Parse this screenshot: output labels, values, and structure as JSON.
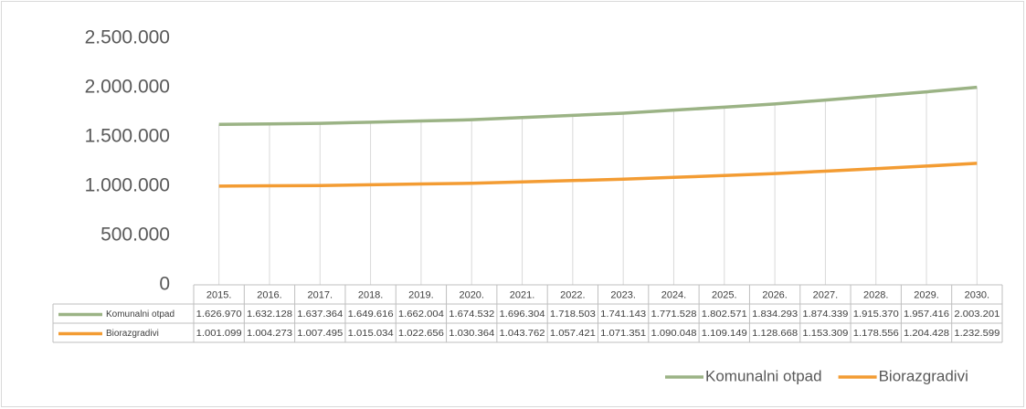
{
  "chart_data": {
    "type": "line",
    "categories": [
      "2015.",
      "2016.",
      "2017.",
      "2018.",
      "2019.",
      "2020.",
      "2021.",
      "2022.",
      "2023.",
      "2024.",
      "2025.",
      "2026.",
      "2027.",
      "2028.",
      "2029.",
      "2030."
    ],
    "series": [
      {
        "name": "Komunalni otpad",
        "color": "#9bb385",
        "values": [
          1626970,
          1632128,
          1637364,
          1649616,
          1662004,
          1674532,
          1696304,
          1718503,
          1741143,
          1771528,
          1802571,
          1834293,
          1874339,
          1915370,
          1957416,
          2003201
        ],
        "value_labels": [
          "1.626.970",
          "1.632.128",
          "1.637.364",
          "1.649.616",
          "1.662.004",
          "1.674.532",
          "1.696.304",
          "1.718.503",
          "1.741.143",
          "1.771.528",
          "1.802.571",
          "1.834.293",
          "1.874.339",
          "1.915.370",
          "1.957.416",
          "2.003.201"
        ]
      },
      {
        "name": "Biorazgradivi",
        "color": "#f39c33",
        "values": [
          1001099,
          1004273,
          1007495,
          1015034,
          1022656,
          1030364,
          1043762,
          1057421,
          1071351,
          1090048,
          1109149,
          1128668,
          1153309,
          1178556,
          1204428,
          1232599
        ],
        "value_labels": [
          "1.001.099",
          "1.004.273",
          "1.007.495",
          "1.015.034",
          "1.022.656",
          "1.030.364",
          "1.043.762",
          "1.057.421",
          "1.071.351",
          "1.090.048",
          "1.109.149",
          "1.128.668",
          "1.153.309",
          "1.178.556",
          "1.204.428",
          "1.232.599"
        ]
      }
    ],
    "ylim": [
      0,
      2500000
    ],
    "yticks": [
      0,
      {
        "value": 500000,
        "label": "500.000"
      },
      {
        "value": 1000000,
        "label": "1.000.000"
      },
      {
        "value": 1500000,
        "label": "1.500.000"
      },
      {
        "value": 2000000,
        "label": "2.000.000"
      },
      {
        "value": 2500000,
        "label": "2.500.000"
      }
    ],
    "legend": "bottom"
  }
}
